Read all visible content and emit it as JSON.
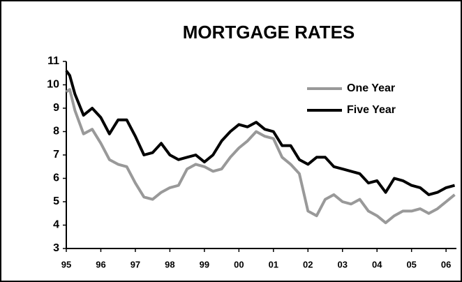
{
  "chart_data": {
    "type": "line",
    "title": "MORTGAGE RATES",
    "x": [
      95,
      95.1,
      95.25,
      95.5,
      95.75,
      96,
      96.25,
      96.5,
      96.75,
      97,
      97.25,
      97.5,
      97.75,
      98,
      98.25,
      98.5,
      98.75,
      99,
      99.25,
      99.5,
      99.75,
      100,
      100.25,
      100.5,
      100.75,
      101,
      101.25,
      101.5,
      101.75,
      102,
      102.25,
      102.5,
      102.75,
      103,
      103.25,
      103.5,
      103.75,
      104,
      104.25,
      104.5,
      104.75,
      105,
      105.25,
      105.5,
      105.75,
      106,
      106.25
    ],
    "series": [
      {
        "name": "One Year",
        "color": "#999999",
        "values": [
          9.7,
          9.8,
          8.9,
          7.9,
          8.1,
          7.5,
          6.8,
          6.6,
          6.5,
          5.8,
          5.2,
          5.1,
          5.4,
          5.6,
          5.7,
          6.4,
          6.6,
          6.5,
          6.3,
          6.4,
          6.9,
          7.3,
          7.6,
          8.0,
          7.8,
          7.7,
          6.9,
          6.6,
          6.2,
          4.6,
          4.4,
          5.1,
          5.3,
          5.0,
          4.9,
          5.1,
          4.6,
          4.4,
          4.1,
          4.4,
          4.6,
          4.6,
          4.7,
          4.5,
          4.7,
          5.0,
          5.3
        ]
      },
      {
        "name": "Five Year",
        "color": "#000000",
        "values": [
          10.6,
          10.4,
          9.6,
          8.7,
          9.0,
          8.6,
          7.9,
          8.5,
          8.5,
          7.8,
          7.0,
          7.1,
          7.5,
          7.0,
          6.8,
          6.9,
          7.0,
          6.7,
          7.0,
          7.6,
          8.0,
          8.3,
          8.2,
          8.4,
          8.1,
          8.0,
          7.4,
          7.4,
          6.8,
          6.6,
          6.9,
          6.9,
          6.5,
          6.4,
          6.3,
          6.2,
          5.8,
          5.9,
          5.4,
          6.0,
          5.9,
          5.7,
          5.6,
          5.3,
          5.4,
          5.6,
          5.7
        ]
      }
    ],
    "xlim": [
      95,
      106.3
    ],
    "xticks": [
      95,
      96,
      97,
      98,
      99,
      {
        "value": 100,
        "label": "00"
      },
      {
        "value": 101,
        "label": "01"
      },
      {
        "value": 102,
        "label": "02"
      },
      {
        "value": 103,
        "label": "03"
      },
      {
        "value": 104,
        "label": "04"
      },
      {
        "value": 105,
        "label": "05"
      },
      {
        "value": 106,
        "label": "06"
      }
    ],
    "ylim": [
      3,
      11
    ],
    "yticks": [
      3,
      4,
      5,
      6,
      7,
      8,
      9,
      10,
      11
    ],
    "legend": "upper right"
  }
}
